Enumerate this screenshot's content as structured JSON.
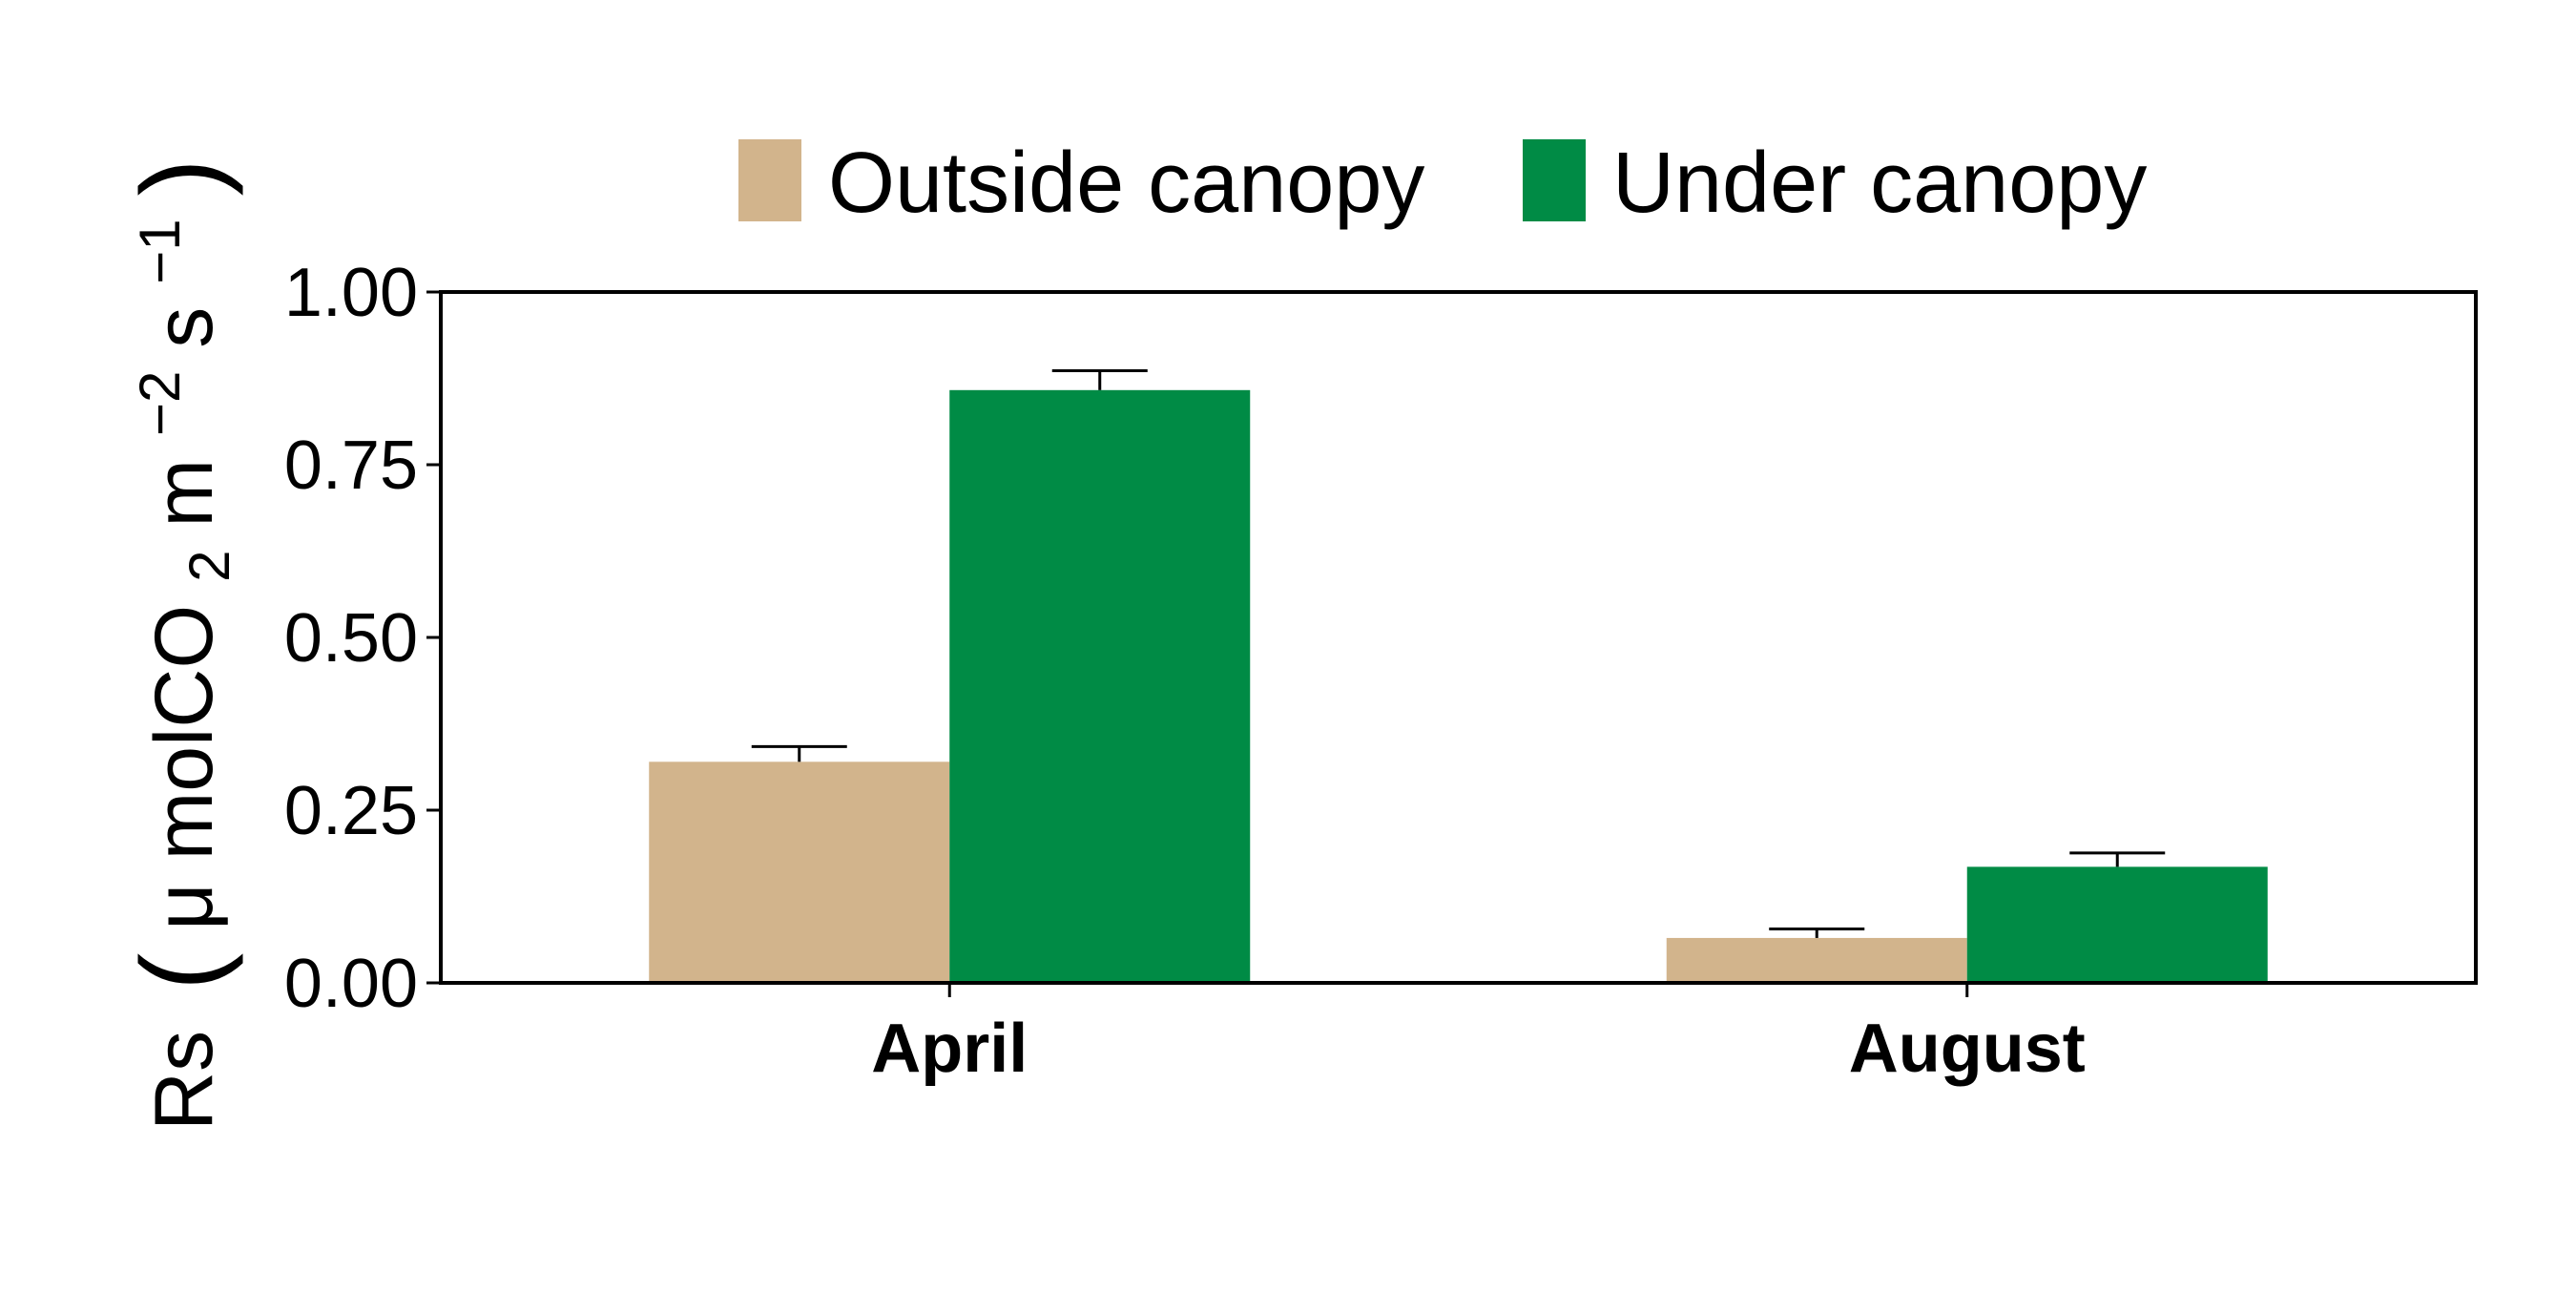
{
  "chart_data": {
    "type": "bar",
    "categories": [
      "April",
      "August"
    ],
    "series": [
      {
        "name": "Outside canopy",
        "color": "#D2B48C",
        "values": [
          0.32,
          0.065
        ],
        "errors": [
          0.022,
          0.013
        ]
      },
      {
        "name": "Under canopy",
        "color": "#008B45",
        "values": [
          0.858,
          0.168
        ],
        "errors": [
          0.028,
          0.02
        ]
      }
    ],
    "ylim": [
      0,
      1.0
    ],
    "yticks": [
      0.0,
      0.25,
      0.5,
      0.75,
      1.0
    ],
    "ytick_labels": [
      "0.00",
      "0.25",
      "0.50",
      "0.75",
      "1.00"
    ],
    "ylabel": {
      "main": "Rs",
      "open_paren": "(",
      "unit_a": "μ molCO",
      "sub2": "2",
      "unit_b": " m",
      "sup_m": "−2",
      "unit_c": " s",
      "sup_s": "−1",
      "close_paren": ")"
    },
    "xlabel": "",
    "title": "",
    "legend_position": "top",
    "grid": false,
    "error_bars": true
  }
}
